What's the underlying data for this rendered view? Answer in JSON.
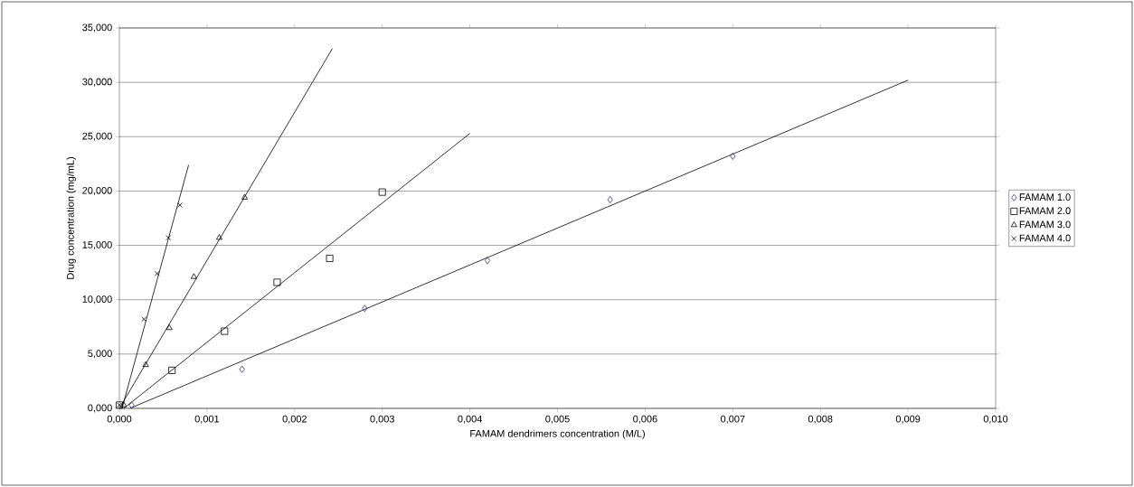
{
  "chart_data": {
    "type": "scatter",
    "xlabel": "FAMAM dendrimers concentration (M/L)",
    "ylabel": "Drug concentration (mg/mL)",
    "xlim": [
      0,
      0.01
    ],
    "ylim": [
      0,
      35
    ],
    "xticks": [
      {
        "value": 0,
        "label": "0,000"
      },
      {
        "value": 0.001,
        "label": "0,001"
      },
      {
        "value": 0.002,
        "label": "0,002"
      },
      {
        "value": 0.003,
        "label": "0,003"
      },
      {
        "value": 0.004,
        "label": "0,004"
      },
      {
        "value": 0.005,
        "label": "0,005"
      },
      {
        "value": 0.006,
        "label": "0,006"
      },
      {
        "value": 0.007,
        "label": "0,007"
      },
      {
        "value": 0.008,
        "label": "0,008"
      },
      {
        "value": 0.009,
        "label": "0,009"
      },
      {
        "value": 0.01,
        "label": "0,010"
      }
    ],
    "yticks": [
      {
        "value": 0,
        "label": "0,000"
      },
      {
        "value": 5,
        "label": "5,000"
      },
      {
        "value": 10,
        "label": "10,000"
      },
      {
        "value": 15,
        "label": "15,000"
      },
      {
        "value": 20,
        "label": "20,000"
      },
      {
        "value": 25,
        "label": "25,000"
      },
      {
        "value": 30,
        "label": "30,000"
      },
      {
        "value": 35,
        "label": "35,000"
      }
    ],
    "grid": "y",
    "legend": "right",
    "series": [
      {
        "name": "FAMAM 1.0",
        "color": "#333399",
        "marker": "diamond",
        "x": [
          0.00014,
          0.0014,
          0.0028,
          0.0042,
          0.0056,
          0.007
        ],
        "values": [
          0.3,
          3.6,
          9.2,
          13.6,
          19.2,
          23.2
        ]
      },
      {
        "name": "FAMAM 2.0",
        "color": "#000000",
        "marker": "square",
        "x": [
          0,
          0.0006,
          0.0012,
          0.0018,
          0.0024,
          0.003
        ],
        "values": [
          0.3,
          3.5,
          7.1,
          11.6,
          13.8,
          19.9
        ]
      },
      {
        "name": "FAMAM 3.0",
        "color": "#000000",
        "marker": "triangle",
        "x": [
          5e-05,
          0.0003,
          0.00057,
          0.00085,
          0.00114,
          0.00143
        ],
        "values": [
          0.3,
          4.0,
          7.4,
          12.1,
          15.7,
          19.4
        ]
      },
      {
        "name": "FAMAM 4.0",
        "color": "#000000",
        "marker": "cross",
        "x": [
          0,
          0.00028,
          0.00043,
          0.00056,
          0.00069
        ],
        "values": [
          0.3,
          8.2,
          12.4,
          15.7,
          18.7
        ]
      },
      {
        "type": "line",
        "color": "#000000",
        "marker": "none",
        "x": [
          0.00012,
          0.009
        ],
        "values": [
          0,
          30.2
        ]
      },
      {
        "type": "line",
        "color": "#000000",
        "marker": "none",
        "x": [
          5e-05,
          0.004
        ],
        "values": [
          0,
          25.3
        ]
      },
      {
        "type": "line",
        "color": "#000000",
        "marker": "none",
        "x": [
          0,
          0.00243
        ],
        "values": [
          0,
          33.1
        ]
      },
      {
        "type": "line",
        "color": "#000000",
        "marker": "none",
        "x": [
          3e-05,
          0.00079
        ],
        "values": [
          0,
          22.4
        ]
      }
    ]
  }
}
